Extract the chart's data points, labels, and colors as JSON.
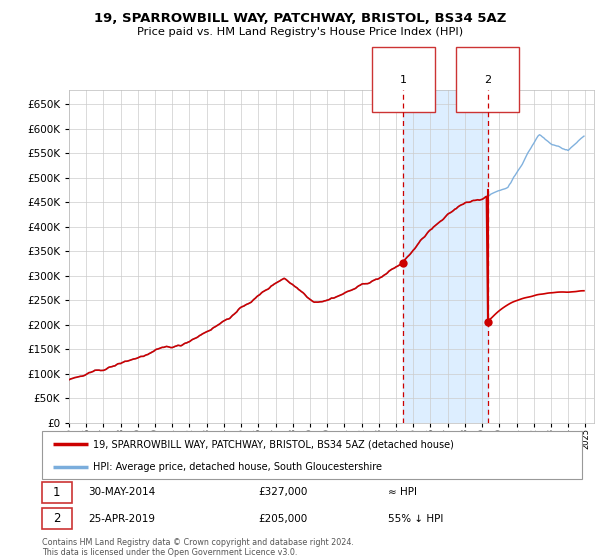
{
  "title": "19, SPARROWBILL WAY, PATCHWAY, BRISTOL, BS34 5AZ",
  "subtitle": "Price paid vs. HM Land Registry's House Price Index (HPI)",
  "legend_line1": "19, SPARROWBILL WAY, PATCHWAY, BRISTOL, BS34 5AZ (detached house)",
  "legend_line2": "HPI: Average price, detached house, South Gloucestershire",
  "point1_date": "30-MAY-2014",
  "point1_price": 327000,
  "point1_note": "≈ HPI",
  "point2_date": "25-APR-2019",
  "point2_price": 205000,
  "point2_note": "55% ↓ HPI",
  "footer": "Contains HM Land Registry data © Crown copyright and database right 2024.\nThis data is licensed under the Open Government Licence v3.0.",
  "red_line_color": "#cc0000",
  "blue_line_color": "#7aaddc",
  "point_color": "#cc0000",
  "shading_color": "#ddeeff",
  "dashed_line_color": "#cc0000",
  "background_color": "#ffffff",
  "grid_color": "#cccccc",
  "ylim_min": 0,
  "ylim_max": 680000,
  "year_start": 1995,
  "year_end": 2025,
  "point1_year": 2014.42,
  "point2_year": 2019.32,
  "point1_price_val": 327000,
  "point2_price_val": 205000,
  "point2_hpi_val": 455000
}
